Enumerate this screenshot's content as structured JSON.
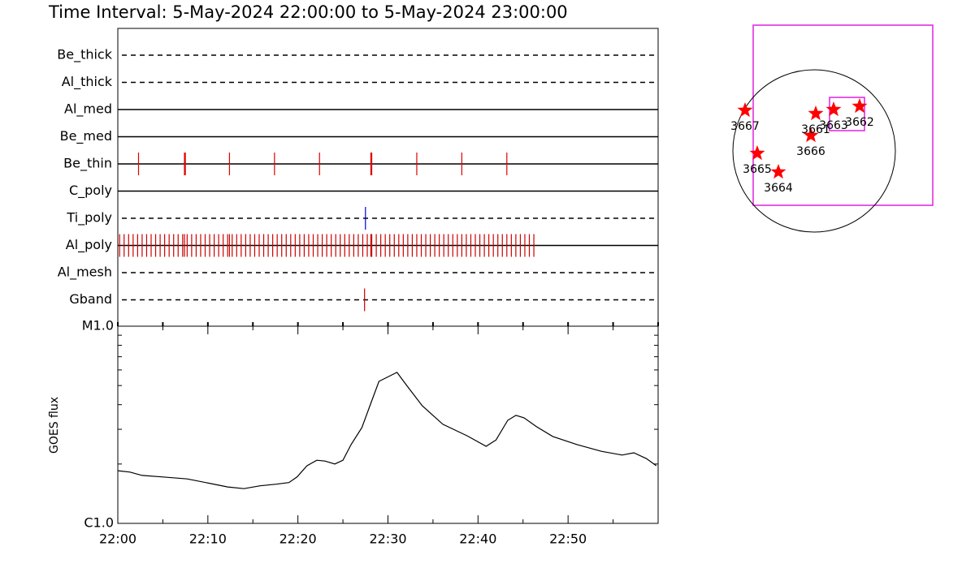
{
  "title": "Time Interval:  5-May-2024 22:00:00 to  5-May-2024 23:00:00",
  "chart_data": [
    {
      "type": "timeline",
      "xlim": [
        0,
        60
      ],
      "xtick_marks": [
        0,
        5,
        10,
        15,
        20,
        25,
        30,
        35,
        40,
        45,
        50,
        55,
        60
      ],
      "filters": [
        {
          "name": "Be_thick",
          "line": "dashed",
          "color": "#cc0000",
          "events": []
        },
        {
          "name": "Al_thick",
          "line": "dashed",
          "color": "#cc0000",
          "events": []
        },
        {
          "name": "Al_med",
          "line": "solid",
          "color": "#cc0000",
          "events": []
        },
        {
          "name": "Be_med",
          "line": "solid",
          "color": "#cc0000",
          "events": []
        },
        {
          "name": "Be_thin",
          "line": "solid",
          "color": "#dd0000",
          "events": [
            2.3,
            7.4,
            7.5,
            12.4,
            17.4,
            22.4,
            28.1,
            28.2,
            33.2,
            38.2,
            43.2
          ]
        },
        {
          "name": "C_poly",
          "line": "solid",
          "color": "#cc0000",
          "events": []
        },
        {
          "name": "Ti_poly",
          "line": "dashed",
          "color": "#0000cc",
          "events": [
            27.5
          ]
        },
        {
          "name": "Al_poly",
          "line": "solid",
          "color": "#cc0000",
          "events": [
            0.2,
            0.7,
            1.2,
            1.7,
            2.2,
            2.7,
            3.2,
            3.7,
            4.2,
            4.7,
            5.2,
            5.7,
            6.2,
            6.7,
            7.2,
            7.4,
            7.7,
            8.2,
            8.7,
            9.2,
            9.7,
            10.2,
            10.7,
            11.2,
            11.7,
            12.2,
            12.4,
            12.7,
            13.2,
            13.7,
            14.2,
            14.7,
            15.2,
            15.7,
            16.2,
            16.7,
            17.2,
            17.7,
            18.2,
            18.7,
            19.2,
            19.7,
            20.2,
            20.7,
            21.2,
            21.7,
            22.2,
            22.7,
            23.2,
            23.7,
            24.2,
            24.7,
            25.2,
            25.7,
            26.2,
            26.7,
            27.2,
            27.7,
            28.1,
            28.2,
            28.7,
            29.2,
            29.7,
            30.2,
            30.7,
            31.2,
            31.7,
            32.2,
            32.7,
            33.2,
            33.7,
            34.2,
            34.7,
            35.2,
            35.7,
            36.2,
            36.7,
            37.2,
            37.7,
            38.2,
            38.7,
            39.2,
            39.7,
            40.2,
            40.7,
            41.2,
            41.7,
            42.2,
            42.7,
            43.2,
            43.7,
            44.2,
            44.7,
            45.2,
            45.7,
            46.2
          ]
        },
        {
          "name": "Al_mesh",
          "line": "dashed",
          "color": "#cc0000",
          "events": []
        },
        {
          "name": "Gband",
          "line": "dashed",
          "color": "#cc0000",
          "events": [
            27.4
          ]
        }
      ]
    },
    {
      "type": "line",
      "ylabel": "GOES flux",
      "color": "#000000",
      "log": true,
      "xlim": [
        0,
        60
      ],
      "ylim": [
        1e-06,
        1e-05
      ],
      "yticks": [
        {
          "value": 1e-06,
          "label": "C1.0"
        },
        {
          "value": 1e-05,
          "label": "M1.0"
        }
      ],
      "yminorticks": [
        2e-06,
        3e-06,
        4e-06,
        5e-06,
        6e-06,
        7e-06,
        8e-06,
        9e-06
      ],
      "xticks": [
        {
          "value": 0,
          "label": "22:00"
        },
        {
          "value": 10,
          "label": "22:10"
        },
        {
          "value": 20,
          "label": "22:20"
        },
        {
          "value": 30,
          "label": "22:30"
        },
        {
          "value": 40,
          "label": "22:40"
        },
        {
          "value": 50,
          "label": "22:50"
        }
      ],
      "xminorticks": [
        5,
        15,
        25,
        35,
        45,
        55
      ],
      "x": [
        0,
        1.35,
        2.7,
        5.0,
        7.7,
        10.4,
        12.2,
        14.0,
        15.8,
        17.6,
        19.0,
        19.9,
        21.0,
        22.1,
        23.0,
        24.1,
        25.0,
        25.9,
        27.1,
        28.0,
        29.0,
        31.0,
        32.0,
        33.8,
        36.1,
        38.8,
        40.9,
        42.0,
        43.3,
        44.2,
        45.1,
        46.5,
        48.3,
        51.0,
        53.7,
        56.0,
        57.3,
        58.7,
        59.8
      ],
      "values": [
        1.85e-06,
        1.82e-06,
        1.75e-06,
        1.72e-06,
        1.68e-06,
        1.59e-06,
        1.53e-06,
        1.5e-06,
        1.55e-06,
        1.58e-06,
        1.61e-06,
        1.72e-06,
        1.96e-06,
        2.09e-06,
        2.07e-06,
        2e-06,
        2.09e-06,
        2.51e-06,
        3.06e-06,
        3.95e-06,
        5.25e-06,
        5.83e-06,
        5.06e-06,
        3.95e-06,
        3.18e-06,
        2.78e-06,
        2.46e-06,
        2.65e-06,
        3.33e-06,
        3.53e-06,
        3.43e-06,
        3.09e-06,
        2.76e-06,
        2.51e-06,
        2.32e-06,
        2.22e-06,
        2.28e-06,
        2.13e-06,
        1.96e-06
      ]
    }
  ],
  "map": {
    "regions": [
      "3667",
      "3665",
      "3664",
      "3666",
      "3661",
      "3663",
      "3662"
    ]
  }
}
